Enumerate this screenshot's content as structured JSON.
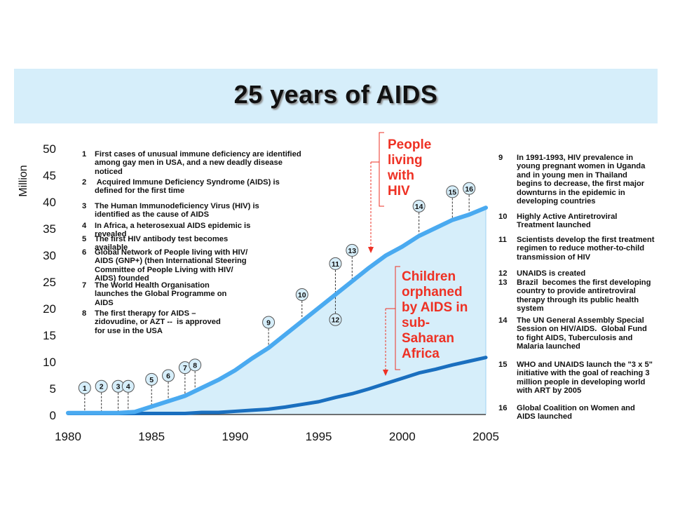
{
  "title": "25 years of AIDS",
  "callouts": {
    "hiv": "People\nliving\nwith\nHIV",
    "orphans": "Children\norphaned\nby AIDS in\nsub-\nSaharan\nAfrica"
  },
  "colors": {
    "hiv_line": "#4aaaf0",
    "orphans_line": "#1a6fbf",
    "fill": "#d6eefa",
    "callout": "#ee3124",
    "marker_fill": "#d6eefa"
  },
  "chart_data": {
    "type": "area",
    "ylabel": "Million",
    "xlim": [
      1980,
      2005
    ],
    "ylim": [
      0,
      50
    ],
    "x_ticks": [
      "1980",
      "1985",
      "1990",
      "1995",
      "2000",
      "2005"
    ],
    "y_ticks": [
      "0",
      "5",
      "10",
      "15",
      "20",
      "25",
      "30",
      "35",
      "40",
      "45",
      "50"
    ],
    "series": [
      {
        "name": "People living with HIV",
        "x": [
          1980,
          1981,
          1982,
          1983,
          1984,
          1985,
          1986,
          1987,
          1988,
          1989,
          1990,
          1991,
          1992,
          1993,
          1994,
          1995,
          1996,
          1997,
          1998,
          1999,
          2000,
          2001,
          2002,
          2003,
          2004,
          2005
        ],
        "values": [
          0.3,
          0.3,
          0.3,
          0.3,
          0.5,
          1.5,
          2.5,
          3.5,
          5,
          6.5,
          8.3,
          10.5,
          12.5,
          15,
          17.5,
          20,
          22.5,
          25,
          27.5,
          29.8,
          31.5,
          33.5,
          35,
          36.5,
          37.5,
          38.8
        ]
      },
      {
        "name": "Children orphaned by AIDS in sub-Saharan Africa",
        "x": [
          1980,
          1981,
          1982,
          1983,
          1984,
          1985,
          1986,
          1987,
          1988,
          1989,
          1990,
          1991,
          1992,
          1993,
          1994,
          1995,
          1996,
          1997,
          1998,
          1999,
          2000,
          2001,
          2002,
          2003,
          2004,
          2005
        ],
        "values": [
          0.2,
          0.2,
          0.2,
          0.2,
          0.2,
          0.2,
          0.2,
          0.2,
          0.4,
          0.4,
          0.6,
          0.8,
          1.0,
          1.4,
          1.9,
          2.4,
          3.2,
          3.9,
          4.8,
          5.8,
          6.8,
          7.8,
          8.5,
          9.3,
          10.0,
          10.7
        ]
      }
    ],
    "events": [
      {
        "label": "1",
        "year": 1981,
        "marker_y": 5,
        "line_to_y": 0.3
      },
      {
        "label": "2",
        "year": 1982,
        "marker_y": 5.3,
        "line_to_y": 0.3
      },
      {
        "label": "3",
        "year": 1983,
        "marker_y": 5.3,
        "line_to_y": 0.3
      },
      {
        "label": "4",
        "year": 1983.6,
        "marker_y": 5.3,
        "line_to_y": 0.3
      },
      {
        "label": "5",
        "year": 1985,
        "marker_y": 6.6,
        "line_to_y": 1.5
      },
      {
        "label": "6",
        "year": 1986,
        "marker_y": 7.3,
        "line_to_y": 2.5
      },
      {
        "label": "7",
        "year": 1987,
        "marker_y": 8.8,
        "line_to_y": 3.5
      },
      {
        "label": "8",
        "year": 1987.6,
        "marker_y": 9.3,
        "line_to_y": 4.2
      },
      {
        "label": "9",
        "year": 1992,
        "marker_y": 17.3,
        "line_to_y": 12.5
      },
      {
        "label": "10",
        "year": 1994,
        "marker_y": 22.5,
        "line_to_y": 17.5
      },
      {
        "label": "11",
        "year": 1996,
        "marker_y": 28.3,
        "line_to_y": 22.5
      },
      {
        "label": "12",
        "year": 1996,
        "marker_y": 17.8,
        "line_to_y": 22.5
      },
      {
        "label": "13",
        "year": 1997,
        "marker_y": 30.8,
        "line_to_y": 25
      },
      {
        "label": "14",
        "year": 2001,
        "marker_y": 39.1,
        "line_to_y": 33.5
      },
      {
        "label": "15",
        "year": 2003,
        "marker_y": 41.8,
        "line_to_y": 36.5
      },
      {
        "label": "16",
        "year": 2004,
        "marker_y": 42.4,
        "line_to_y": 37.5
      }
    ]
  },
  "left_notes": [
    {
      "n": "1",
      "text": "First cases of unusual immune deficiency are identified\namong gay men in USA, and a new deadly disease\nnoticed"
    },
    {
      "n": "2",
      "text": " Acquired Immune Deficiency Syndrome (AIDS) is\ndefined for the first time"
    },
    {
      "n": "3",
      "text": "The Human Immunodeficiency Virus (HIV) is\nidentified as the cause of AIDS"
    },
    {
      "n": "4",
      "text": "In Africa, a heterosexual AIDS epidemic is\nrevealed"
    },
    {
      "n": "5",
      "text": "The first HIV antibody test becomes\navailable"
    },
    {
      "n": "6",
      "text": "Global Network of People living with HIV/\nAIDS (GNP+) (then International Steering\nCommittee of People Living with HIV/\nAIDS) founded"
    },
    {
      "n": "7",
      "text": "The World Health Organisation\nlaunches the Global Programme on\nAIDS"
    },
    {
      "n": "8",
      "text": "The first therapy for AIDS –\nzidovudine, or AZT --  is approved\nfor use in the USA"
    }
  ],
  "right_notes": [
    {
      "n": "9",
      "text": "In 1991-1993, HIV prevalence in\nyoung pregnant women in Uganda\nand in young men in Thailand\nbegins to decrease, the first major\ndownturns in the epidemic in\ndeveloping countries"
    },
    {
      "n": "10",
      "text": "Highly Active Antiretroviral\nTreatment launched"
    },
    {
      "n": "11",
      "text": "Scientists develop the first treatment\nregimen to reduce mother-to-child\ntransmission of HIV"
    },
    {
      "n": "12",
      "text": "UNAIDS is created"
    },
    {
      "n": "13",
      "text": "Brazil  becomes the first developing\ncountry to provide antiretroviral\ntherapy through its public health\nsystem"
    },
    {
      "n": "14",
      "text": "The UN General Assembly Special\nSession on HIV/AIDS.  Global Fund\nto fight AIDS, Tuberculosis and\nMalaria launched"
    },
    {
      "n": "15",
      "text": "WHO and UNAIDS launch the \"3 x 5\"\ninitiative with the goal of reaching 3\nmillion people in developing world\nwith ART by 2005"
    },
    {
      "n": "16",
      "text": "Global Coalition on Women and\nAIDS launched"
    }
  ]
}
